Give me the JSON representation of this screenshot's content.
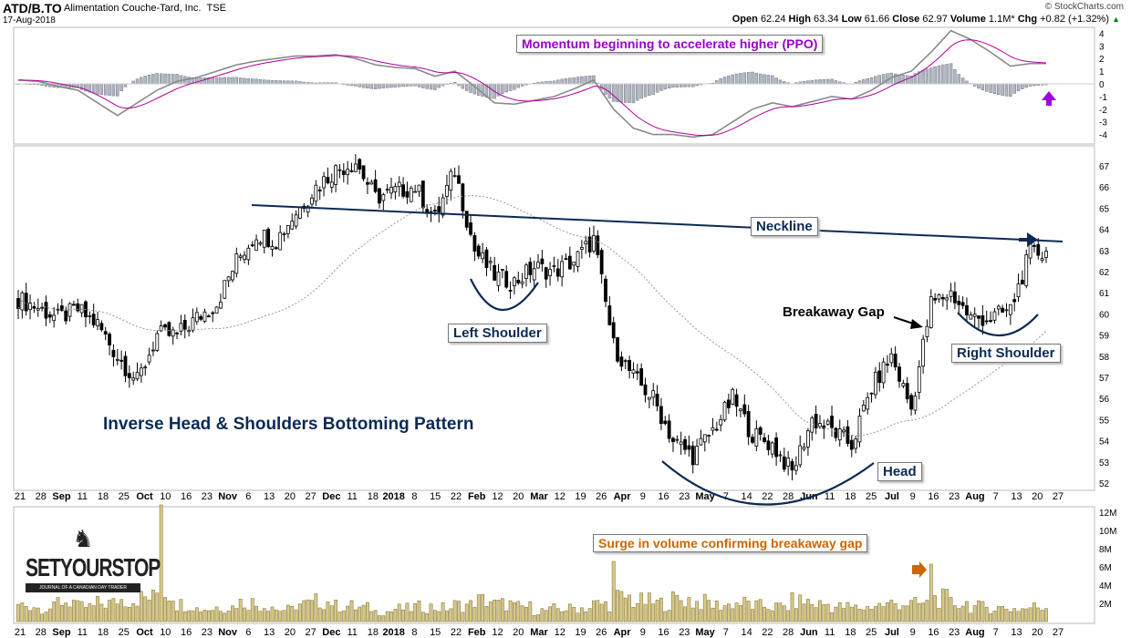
{
  "header": {
    "symbol": "ATD/B.TO",
    "company": "Alimentation Couche-Tard, Inc.",
    "exchange": "TSE",
    "date": "17-Aug-2018",
    "source": "© StockCharts.com",
    "open_label": "Open",
    "open": "62.24",
    "high_label": "High",
    "high": "63.34",
    "low_label": "Low",
    "low": "61.66",
    "close_label": "Close",
    "close": "62.97",
    "volume_label": "Volume",
    "volume": "1.1M*",
    "chg_label": "Chg",
    "chg": "+0.82 (+1.32%)"
  },
  "annotations": {
    "ppo_note": "Momentum beginning to accelerate higher (PPO)",
    "neckline": "Neckline",
    "left_shoulder": "Left Shoulder",
    "head": "Head",
    "right_shoulder": "Right Shoulder",
    "breakaway": "Breakaway Gap",
    "pattern": "Inverse Head & Shoulders Bottoming Pattern",
    "volume_note": "Surge in volume confirming breakaway gap",
    "logo": "SETYOURSTOP",
    "logo_tag": "JOURNAL OF A CANADIAN DAY TRADER"
  },
  "colors": {
    "ppo_note": "#9900cc",
    "volume_note": "#cc6600",
    "navy": "#0b2a55",
    "volume_bar": "#d8c98a",
    "ppo_line": "#8a8a8a",
    "signal_line": "#b0009a"
  },
  "chart_data": [
    {
      "type": "candlestick",
      "title": "ATD/B.TO daily price",
      "ylim": [
        52,
        67
      ],
      "yticks": [
        52,
        53,
        54,
        55,
        56,
        57,
        58,
        59,
        60,
        61,
        62,
        63,
        64,
        65,
        66,
        67
      ],
      "weekly_closes": [
        60.7,
        60.3,
        59.8,
        60.2,
        59.5,
        58.0,
        56.8,
        59.0,
        59.0,
        59.8,
        60.5,
        62.5,
        63.8,
        63.5,
        64.8,
        66.0,
        66.8,
        67.2,
        65.5,
        65.8,
        66.0,
        64.5,
        66.8,
        63.0,
        61.8,
        61.5,
        62.2,
        62.0,
        62.5,
        63.5,
        58.5,
        57.0,
        56.0,
        54.0,
        53.3,
        54.5,
        56.0,
        54.3,
        53.8,
        52.5,
        55.0,
        54.5,
        53.8,
        56.5,
        58.0,
        55.5,
        60.5,
        61.0,
        59.8,
        59.8,
        60.2,
        62.9
      ],
      "moving_average": "50-day SMA"
    },
    {
      "type": "line",
      "title": "PPO",
      "ylim": [
        -4.5,
        4.5
      ],
      "yticks": [
        4,
        3,
        2,
        1,
        0,
        -1,
        -2,
        -3,
        -4
      ],
      "weekly_ppo": [
        0.3,
        0.2,
        -0.2,
        -0.5,
        -1.5,
        -2.5,
        -1.5,
        -0.5,
        0.2,
        0.5,
        1.0,
        1.5,
        1.8,
        2.0,
        2.2,
        2.2,
        2.3,
        2.0,
        1.5,
        1.3,
        1.2,
        0.6,
        1.0,
        -0.2,
        -1.5,
        -1.6,
        -1.3,
        -1.0,
        -0.4,
        0.3,
        -2.0,
        -3.5,
        -4.0,
        -4.0,
        -4.2,
        -4.0,
        -3.0,
        -2.0,
        -1.5,
        -1.8,
        -1.4,
        -1.0,
        -1.2,
        -0.5,
        0.5,
        1.0,
        2.5,
        4.2,
        3.5,
        2.5,
        1.4,
        1.6
      ]
    },
    {
      "type": "bar",
      "title": "Volume",
      "ylim": [
        0,
        12
      ],
      "yticks": [
        "2M",
        "4M",
        "6M",
        "8M",
        "10M",
        "12M"
      ],
      "weekly_volume_m": [
        1.8,
        1.5,
        2.2,
        1.6,
        2.0,
        2.4,
        2.6,
        3.2,
        1.9,
        1.4,
        1.6,
        2.1,
        1.8,
        1.3,
        1.9,
        2.2,
        1.7,
        1.5,
        1.1,
        1.4,
        1.6,
        1.5,
        1.8,
        2.3,
        1.9,
        1.6,
        1.2,
        1.4,
        1.5,
        1.9,
        2.6,
        2.2,
        2.0,
        2.4,
        2.1,
        1.8,
        2.0,
        1.7,
        1.6,
        2.2,
        1.9,
        1.6,
        1.5,
        1.8,
        2.0,
        1.9,
        2.5,
        2.0,
        1.6,
        1.5,
        1.4,
        1.6
      ],
      "spikes": [
        {
          "date": "Oct 10",
          "value_m": 12.8
        },
        {
          "date": "Mar 19",
          "value_m": 6.6
        },
        {
          "date": "Jul 9",
          "value_m": 6.3
        }
      ]
    },
    {
      "type": "axis",
      "x_ticks": [
        {
          "l": "21",
          "b": false
        },
        {
          "l": "28",
          "b": false
        },
        {
          "l": "Sep",
          "b": true
        },
        {
          "l": "11",
          "b": false
        },
        {
          "l": "18",
          "b": false
        },
        {
          "l": "25",
          "b": false
        },
        {
          "l": "Oct",
          "b": true
        },
        {
          "l": "10",
          "b": false
        },
        {
          "l": "16",
          "b": false
        },
        {
          "l": "23",
          "b": false
        },
        {
          "l": "Nov",
          "b": true
        },
        {
          "l": "6",
          "b": false
        },
        {
          "l": "13",
          "b": false
        },
        {
          "l": "20",
          "b": false
        },
        {
          "l": "27",
          "b": false
        },
        {
          "l": "Dec",
          "b": true
        },
        {
          "l": "11",
          "b": false
        },
        {
          "l": "18",
          "b": false
        },
        {
          "l": "2018",
          "b": true
        },
        {
          "l": "8",
          "b": false
        },
        {
          "l": "15",
          "b": false
        },
        {
          "l": "22",
          "b": false
        },
        {
          "l": "Feb",
          "b": true
        },
        {
          "l": "12",
          "b": false
        },
        {
          "l": "20",
          "b": false
        },
        {
          "l": "Mar",
          "b": true
        },
        {
          "l": "12",
          "b": false
        },
        {
          "l": "19",
          "b": false
        },
        {
          "l": "26",
          "b": false
        },
        {
          "l": "Apr",
          "b": true
        },
        {
          "l": "9",
          "b": false
        },
        {
          "l": "16",
          "b": false
        },
        {
          "l": "23",
          "b": false
        },
        {
          "l": "May",
          "b": true
        },
        {
          "l": "7",
          "b": false
        },
        {
          "l": "14",
          "b": false
        },
        {
          "l": "22",
          "b": false
        },
        {
          "l": "28",
          "b": false
        },
        {
          "l": "Jun",
          "b": true
        },
        {
          "l": "11",
          "b": false
        },
        {
          "l": "18",
          "b": false
        },
        {
          "l": "25",
          "b": false
        },
        {
          "l": "Jul",
          "b": true
        },
        {
          "l": "9",
          "b": false
        },
        {
          "l": "16",
          "b": false
        },
        {
          "l": "23",
          "b": false
        },
        {
          "l": "Aug",
          "b": true
        },
        {
          "l": "7",
          "b": false
        },
        {
          "l": "13",
          "b": false
        },
        {
          "l": "20",
          "b": false
        },
        {
          "l": "27",
          "b": false
        }
      ]
    }
  ]
}
